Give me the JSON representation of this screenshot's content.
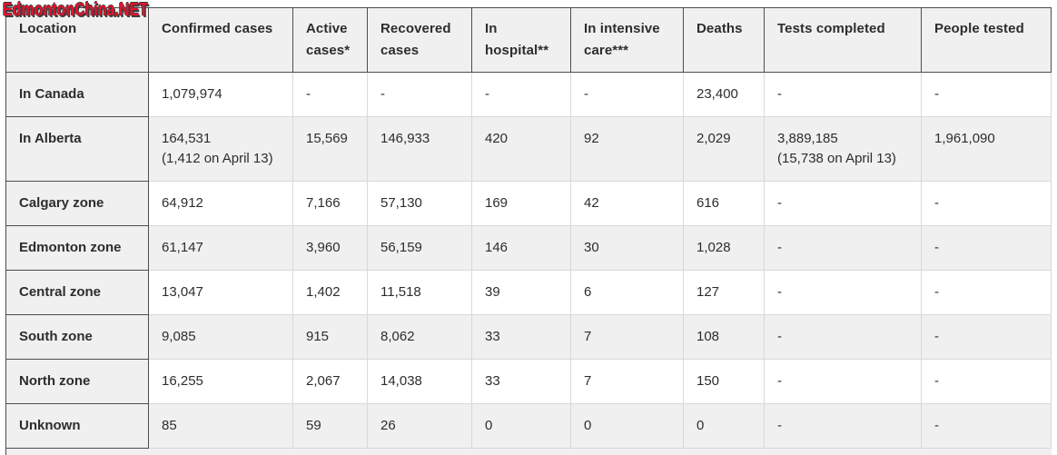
{
  "watermark": {
    "text": "EdmontonChina.NET",
    "color": "#e8122d"
  },
  "colors": {
    "header_bg": "#f0f0f0",
    "alt_row_bg": "#f0f0f0",
    "border_dark": "#4d4d4d",
    "border_light": "#d9d9d9",
    "text": "#2d2d2d",
    "watermark_red": "#e8122d"
  },
  "chart_data": {
    "type": "table",
    "title": "COVID-19 cases table",
    "columns": [
      "Location",
      "Confirmed cases",
      "Active cases*",
      "Recovered cases",
      "In hospital**",
      "In intensive care***",
      "Deaths",
      "Tests completed",
      "People tested"
    ],
    "rows": [
      {
        "location": "In Canada",
        "values": [
          "1,079,974",
          "-",
          "-",
          "-",
          "-",
          "23,400",
          "-",
          "-"
        ]
      },
      {
        "location": "In Alberta",
        "values": [
          "164,531\n(1,412 on April 13)",
          "15,569",
          "146,933",
          "420",
          "92",
          "2,029",
          "3,889,185\n(15,738 on April 13)",
          "1,961,090"
        ]
      },
      {
        "location": "Calgary zone",
        "values": [
          "64,912",
          "7,166",
          "57,130",
          "169",
          "42",
          "616",
          "-",
          "-"
        ]
      },
      {
        "location": "Edmonton zone",
        "values": [
          "61,147",
          "3,960",
          "56,159",
          "146",
          "30",
          "1,028",
          "-",
          "-"
        ]
      },
      {
        "location": "Central zone",
        "values": [
          "13,047",
          "1,402",
          "11,518",
          "39",
          "6",
          "127",
          "-",
          "-"
        ]
      },
      {
        "location": "South zone",
        "values": [
          "9,085",
          "915",
          "8,062",
          "33",
          "7",
          "108",
          "-",
          "-"
        ]
      },
      {
        "location": "North zone",
        "values": [
          "16,255",
          "2,067",
          "14,038",
          "33",
          "7",
          "150",
          "-",
          "-"
        ]
      },
      {
        "location": "Unknown",
        "values": [
          "85",
          "59",
          "26",
          "0",
          "0",
          "0",
          "-",
          "-"
        ]
      }
    ]
  }
}
